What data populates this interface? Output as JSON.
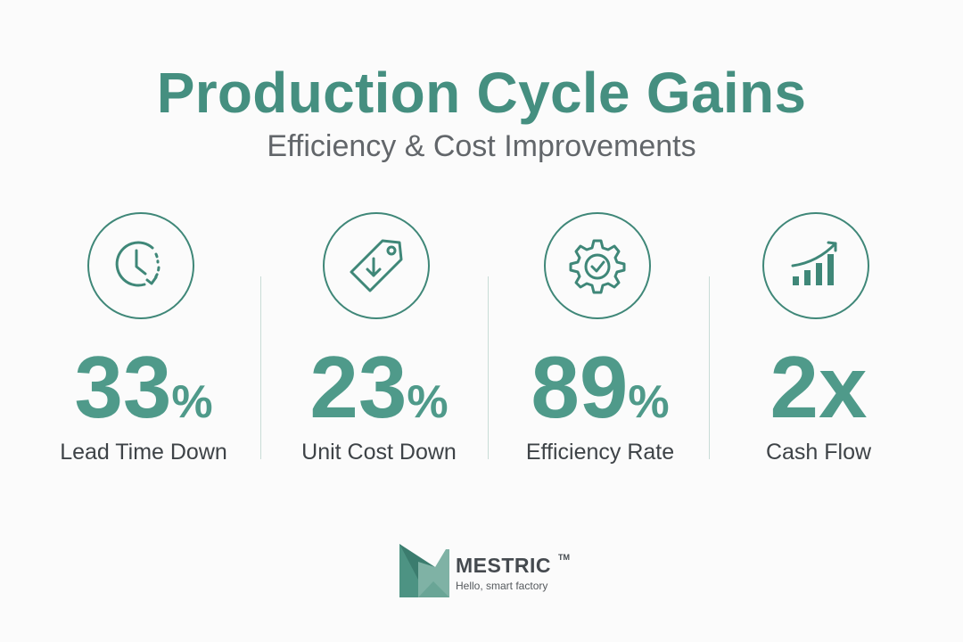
{
  "header": {
    "title": "Production Cycle Gains",
    "subtitle": "Efficiency & Cost Improvements"
  },
  "stats": [
    {
      "icon": "clock-icon",
      "value": "33",
      "unit": "%",
      "label": "Lead Time Down"
    },
    {
      "icon": "price-tag-icon",
      "value": "23",
      "unit": "%",
      "label": "Unit Cost Down"
    },
    {
      "icon": "gear-check-icon",
      "value": "89",
      "unit": "%",
      "label": "Efficiency Rate"
    },
    {
      "icon": "growth-chart-icon",
      "value": "2x",
      "unit": "",
      "label": "Cash Flow"
    }
  ],
  "brand": {
    "name": "MESTRIC",
    "trademark": "TM",
    "tagline": "Hello, smart factory"
  },
  "colors": {
    "accent": "#458f80",
    "icon_stroke": "#3f8778",
    "value": "#4f9a8a",
    "divider": "#c8dcd7",
    "background": "#fbfbfb"
  }
}
